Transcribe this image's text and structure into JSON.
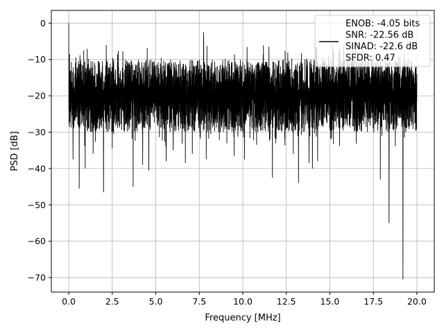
{
  "chart_data": {
    "type": "line",
    "title": "",
    "xlabel": "Frequency [MHz]",
    "ylabel": "PSD [dB]",
    "xlim": [
      -1.0,
      21.0
    ],
    "ylim": [
      -74,
      3.5
    ],
    "xticks": [
      0.0,
      2.5,
      5.0,
      7.5,
      10.0,
      12.5,
      15.0,
      17.5,
      20.0
    ],
    "xtick_labels": [
      "0.0",
      "2.5",
      "5.0",
      "7.5",
      "10.0",
      "12.5",
      "15.0",
      "17.5",
      "20.0"
    ],
    "yticks": [
      0,
      -10,
      -20,
      -30,
      -40,
      -50,
      -60,
      -70
    ],
    "ytick_labels": [
      "0",
      "−10",
      "−20",
      "−30",
      "−40",
      "−50",
      "−60",
      "−70"
    ],
    "grid": true,
    "legend": {
      "placement": "upper-right",
      "entries": [
        "ENOB: -4.05 bits",
        "SNR: -22.56 dB",
        "SINAD: -22.6 dB",
        "SFDR: 0.47"
      ]
    },
    "series": [
      {
        "color": "#000000",
        "x_range": [
          0.0,
          20.0
        ],
        "band": {
          "upper_typical": -10,
          "lower_typical": -30,
          "center": -20
        },
        "peaks": [
          {
            "x": 0.0,
            "y": 0.0
          },
          {
            "x": 0.05,
            "y": -8.5
          },
          {
            "x": 7.75,
            "y": -2.5
          },
          {
            "x": 16.3,
            "y": -5.5
          },
          {
            "x": 11.5,
            "y": -6.5
          },
          {
            "x": 15.8,
            "y": -6.0
          }
        ],
        "dips": [
          {
            "x": 0.25,
            "y": -37.5
          },
          {
            "x": 0.6,
            "y": -45.5
          },
          {
            "x": 0.95,
            "y": -40.0
          },
          {
            "x": 1.4,
            "y": -36.0
          },
          {
            "x": 2.0,
            "y": -46.5
          },
          {
            "x": 2.5,
            "y": -34.5
          },
          {
            "x": 3.7,
            "y": -45.0
          },
          {
            "x": 4.25,
            "y": -39.0
          },
          {
            "x": 4.6,
            "y": -40.5
          },
          {
            "x": 5.6,
            "y": -38.0
          },
          {
            "x": 6.0,
            "y": -35.0
          },
          {
            "x": 6.7,
            "y": -38.5
          },
          {
            "x": 7.1,
            "y": -36.0
          },
          {
            "x": 7.9,
            "y": -37.5
          },
          {
            "x": 9.5,
            "y": -36.5
          },
          {
            "x": 10.1,
            "y": -37.5
          },
          {
            "x": 11.7,
            "y": -42.5
          },
          {
            "x": 12.9,
            "y": -36.0
          },
          {
            "x": 13.2,
            "y": -44.0
          },
          {
            "x": 13.8,
            "y": -38.5
          },
          {
            "x": 14.0,
            "y": -40.0
          },
          {
            "x": 14.3,
            "y": -38.0
          },
          {
            "x": 17.9,
            "y": -43.0
          },
          {
            "x": 18.4,
            "y": -55.0
          },
          {
            "x": 19.2,
            "y": -70.5
          }
        ]
      }
    ]
  }
}
